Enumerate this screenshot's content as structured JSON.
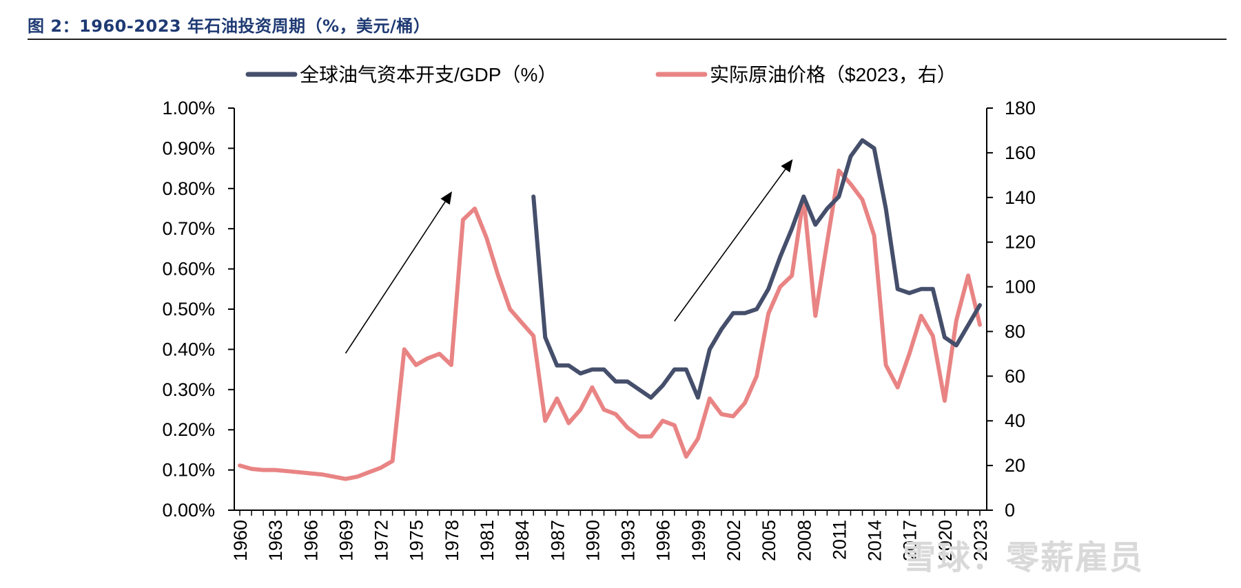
{
  "caption": "图 2：1960-2023 年石油投资周期（%，美元/桶）",
  "watermark": "雪球：零薪雇员",
  "colors": {
    "capex": "#454f6b",
    "price": "#e98484",
    "axis": "#000000",
    "arrow": "#000000"
  },
  "chart_data": {
    "type": "line",
    "title": "",
    "xlabel": "",
    "ylabel": "",
    "ylim": [
      0,
      1.0
    ],
    "y2lim": [
      0,
      180
    ],
    "yticks": [
      "0.00%",
      "0.10%",
      "0.20%",
      "0.30%",
      "0.40%",
      "0.50%",
      "0.60%",
      "0.70%",
      "0.80%",
      "0.90%",
      "1.00%"
    ],
    "y2ticks": [
      "0",
      "20",
      "40",
      "60",
      "80",
      "100",
      "120",
      "140",
      "160",
      "180"
    ],
    "x_tick_labels": [
      "1960",
      "1963",
      "1966",
      "1969",
      "1972",
      "1975",
      "1978",
      "1981",
      "1984",
      "1987",
      "1990",
      "1993",
      "1996",
      "1999",
      "2002",
      "2005",
      "2008",
      "2011",
      "2014",
      "2017",
      "2020",
      "2023"
    ],
    "legend_position": "top",
    "series": [
      {
        "name": "全球油气资本开支/GDP（%）",
        "axis": "left",
        "x": [
          1985,
          1986,
          1987,
          1988,
          1989,
          1990,
          1991,
          1992,
          1993,
          1994,
          1995,
          1996,
          1997,
          1998,
          1999,
          2000,
          2001,
          2002,
          2003,
          2004,
          2005,
          2006,
          2007,
          2008,
          2009,
          2010,
          2011,
          2012,
          2013,
          2014,
          2015,
          2016,
          2017,
          2018,
          2019,
          2020,
          2021,
          2022,
          2023
        ],
        "values": [
          0.78,
          0.43,
          0.36,
          0.36,
          0.34,
          0.35,
          0.35,
          0.32,
          0.32,
          0.3,
          0.28,
          0.31,
          0.35,
          0.35,
          0.28,
          0.4,
          0.45,
          0.49,
          0.49,
          0.5,
          0.55,
          0.63,
          0.7,
          0.78,
          0.71,
          0.75,
          0.78,
          0.88,
          0.92,
          0.9,
          0.75,
          0.55,
          0.54,
          0.55,
          0.55,
          0.43,
          0.41,
          0.46,
          0.51
        ]
      },
      {
        "name": "实际原油价格（$2023，右）",
        "axis": "right",
        "x": [
          1960,
          1961,
          1962,
          1963,
          1964,
          1965,
          1966,
          1967,
          1968,
          1969,
          1970,
          1971,
          1972,
          1973,
          1974,
          1975,
          1976,
          1977,
          1978,
          1979,
          1980,
          1981,
          1982,
          1983,
          1984,
          1985,
          1986,
          1987,
          1988,
          1989,
          1990,
          1991,
          1992,
          1993,
          1994,
          1995,
          1996,
          1997,
          1998,
          1999,
          2000,
          2001,
          2002,
          2003,
          2004,
          2005,
          2006,
          2007,
          2008,
          2009,
          2010,
          2011,
          2012,
          2013,
          2014,
          2015,
          2016,
          2017,
          2018,
          2019,
          2020,
          2021,
          2022,
          2023
        ],
        "values": [
          20,
          18.5,
          18,
          18,
          17.5,
          17,
          16.5,
          16,
          15,
          14,
          15,
          17,
          19,
          22,
          72,
          65,
          68,
          70,
          65,
          130,
          135,
          122,
          105,
          90,
          84,
          78,
          40,
          50,
          39,
          45,
          55,
          45,
          43,
          37,
          33,
          33,
          40,
          38,
          24,
          32,
          50,
          43,
          42,
          48,
          60,
          88,
          100,
          105,
          140,
          87,
          120,
          152,
          146,
          139,
          123,
          65,
          55,
          70,
          87,
          78,
          49,
          85,
          105,
          83
        ]
      }
    ],
    "annotations": [
      {
        "type": "arrow",
        "from": [
          1969,
          0.39
        ],
        "to": [
          1978,
          0.79
        ]
      },
      {
        "type": "arrow",
        "from": [
          1997,
          0.47
        ],
        "to": [
          2007,
          0.87
        ]
      }
    ]
  }
}
